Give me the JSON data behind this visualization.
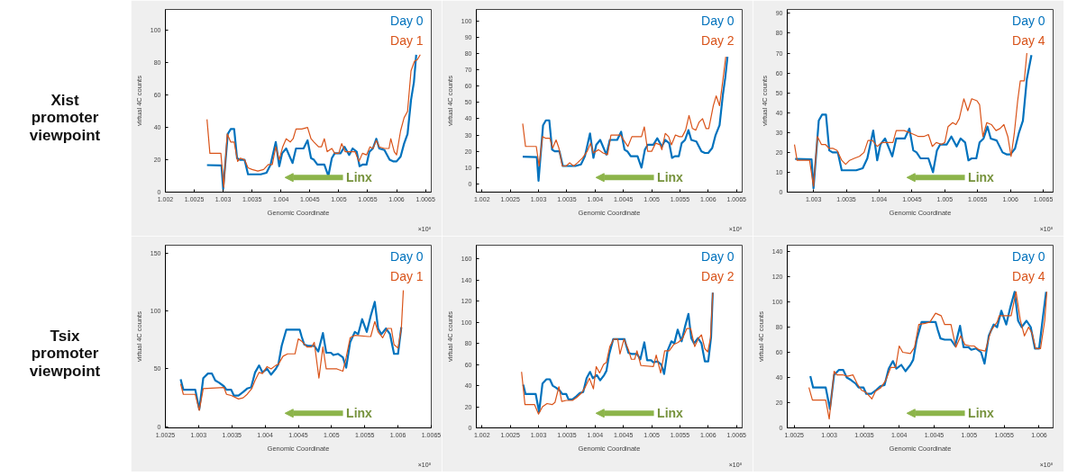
{
  "chart_data": [
    {
      "type": "other",
      "title": "Xist promoter viewpoint"
    },
    {
      "type": "line",
      "xlabel": "Genomic Coordinate",
      "ylabel": "virtual 4C counts",
      "xlim": [
        1.002,
        1.0066
      ],
      "ylim": [
        0,
        113
      ],
      "xticks": [
        1.002,
        1.0025,
        1.003,
        1.0035,
        1.004,
        1.0045,
        1.005,
        1.0055,
        1.006,
        1.0065
      ],
      "yticks": [
        0,
        20,
        40,
        60,
        80,
        100
      ],
      "legend": "top right",
      "annotations": [
        "Linx",
        "×10⁸"
      ],
      "series": [
        {
          "name": "Day 0",
          "color": "#0072bd",
          "x": [
            1.00272,
            1.00297,
            1.003,
            1.00308,
            1.00313,
            1.00319,
            1.00324,
            1.00329,
            1.00337,
            1.00343,
            1.00365,
            1.00375,
            1.00382,
            1.00391,
            1.00397,
            1.00402,
            1.00409,
            1.0042,
            1.00426,
            1.00439,
            1.00446,
            1.00452,
            1.00457,
            1.00463,
            1.00475,
            1.00482,
            1.00488,
            1.00493,
            1.00503,
            1.0051,
            1.00518,
            1.00524,
            1.00531,
            1.00536,
            1.00541,
            1.00548,
            1.00553,
            1.00559,
            1.00565,
            1.0057,
            1.00579,
            1.00588,
            1.00594,
            1.006,
            1.00607,
            1.00613,
            1.00619,
            1.00625,
            1.0063,
            1.00634
          ],
          "values": [
            16.7,
            16.5,
            2,
            36,
            39,
            39,
            21,
            20,
            20,
            11,
            11,
            12,
            17,
            31,
            16,
            24,
            27,
            18,
            27,
            27,
            32,
            21,
            20,
            17,
            17,
            10,
            21,
            24,
            24,
            28,
            23,
            27,
            25,
            16,
            17,
            17,
            25,
            27,
            33,
            27,
            26,
            20,
            19,
            19,
            22,
            30,
            36,
            57,
            68,
            85
          ]
        },
        {
          "name": "Day 1",
          "color": "#d95319",
          "x": [
            1.00272,
            1.00277,
            1.00296,
            1.00301,
            1.00307,
            1.00313,
            1.00319,
            1.00325,
            1.0033,
            1.00337,
            1.00343,
            1.0035,
            1.0036,
            1.0037,
            1.00378,
            1.00385,
            1.00391,
            1.00397,
            1.00403,
            1.00409,
            1.00416,
            1.00421,
            1.00426,
            1.00436,
            1.00446,
            1.00452,
            1.00457,
            1.00465,
            1.0047,
            1.00475,
            1.0048,
            1.00488,
            1.00493,
            1.005,
            1.00505,
            1.00511,
            1.00518,
            1.00528,
            1.00535,
            1.00541,
            1.00548,
            1.00554,
            1.00559,
            1.00565,
            1.0057,
            1.00579,
            1.00587,
            1.0059,
            1.00596,
            1.006,
            1.00607,
            1.00613,
            1.00619,
            1.00625,
            1.00631,
            1.00636,
            1.00641
          ],
          "values": [
            45,
            24,
            24,
            3,
            36,
            31,
            31,
            19,
            21,
            20,
            15,
            14,
            13,
            14,
            17,
            17,
            28,
            20,
            28,
            33,
            31,
            33,
            39,
            39,
            40,
            33,
            31,
            28,
            28,
            33,
            25,
            27,
            24,
            24,
            30,
            25,
            25,
            25,
            19,
            24,
            23,
            28,
            27,
            32,
            28,
            27,
            27,
            33,
            25,
            23,
            38,
            46,
            50,
            75,
            81,
            82,
            85
          ]
        }
      ]
    },
    {
      "type": "line",
      "xlabel": "Genomic Coordinate",
      "ylabel": "virtual 4C counts",
      "xlim": [
        1.0019,
        1.0066
      ],
      "ylim": [
        -5,
        107
      ],
      "xticks": [
        1.002,
        1.0025,
        1.003,
        1.0035,
        1.004,
        1.0045,
        1.005,
        1.0055,
        1.006,
        1.0065
      ],
      "yticks": [
        0,
        10,
        20,
        30,
        40,
        50,
        60,
        70,
        80,
        90,
        100
      ],
      "legend": "top right",
      "annotations": [
        "Linx",
        "×10⁸"
      ],
      "series": [
        {
          "name": "Day 0",
          "color": "#0072bd",
          "x": [
            1.00272,
            1.00297,
            1.003,
            1.00308,
            1.00313,
            1.00319,
            1.00324,
            1.00329,
            1.00337,
            1.00343,
            1.00365,
            1.00375,
            1.00382,
            1.00391,
            1.00397,
            1.00402,
            1.00409,
            1.0042,
            1.00426,
            1.00439,
            1.00446,
            1.00452,
            1.00457,
            1.00463,
            1.00475,
            1.00482,
            1.00488,
            1.00493,
            1.00503,
            1.0051,
            1.00518,
            1.00524,
            1.00531,
            1.00536,
            1.00541,
            1.00548,
            1.00553,
            1.00559,
            1.00565,
            1.0057,
            1.00579,
            1.00588,
            1.00594,
            1.006,
            1.00607,
            1.00613,
            1.0062,
            1.00626,
            1.0063,
            1.00634
          ],
          "values": [
            16.7,
            16.5,
            2,
            36,
            39,
            39,
            21,
            20,
            20,
            11,
            11,
            12,
            17,
            31,
            16,
            24,
            27,
            18,
            27,
            27,
            32,
            21,
            20,
            17,
            17,
            10,
            21,
            24,
            24,
            28,
            23,
            27,
            25,
            16,
            17,
            17,
            25,
            27,
            33,
            27,
            26,
            20,
            19,
            19,
            22,
            30,
            36,
            55,
            65,
            78
          ]
        },
        {
          "name": "Day 2",
          "color": "#d95319",
          "x": [
            1.00272,
            1.00277,
            1.00296,
            1.00301,
            1.00307,
            1.00313,
            1.0032,
            1.00325,
            1.00331,
            1.00336,
            1.00342,
            1.00349,
            1.00355,
            1.00362,
            1.00369,
            1.00378,
            1.00386,
            1.00392,
            1.00397,
            1.00406,
            1.00414,
            1.00422,
            1.00428,
            1.00437,
            1.00445,
            1.00454,
            1.00458,
            1.00465,
            1.00476,
            1.00482,
            1.00487,
            1.00493,
            1.005,
            1.00507,
            1.00515,
            1.00518,
            1.00524,
            1.0053,
            1.00535,
            1.00542,
            1.00549,
            1.00554,
            1.0056,
            1.00566,
            1.00572,
            1.00578,
            1.00584,
            1.0059,
            1.00596,
            1.00601,
            1.00609,
            1.00614,
            1.0062,
            1.00626,
            1.00631
          ],
          "values": [
            37,
            23,
            23,
            11,
            29,
            28,
            28,
            22,
            27,
            22,
            11,
            11,
            13,
            11,
            13,
            16,
            20,
            25,
            19,
            21,
            19,
            18,
            30,
            30,
            30,
            25,
            23,
            29,
            29,
            29,
            35,
            20,
            20,
            25,
            24,
            21,
            31,
            29,
            24,
            30,
            29,
            29,
            33,
            42,
            34,
            33,
            38,
            40,
            34,
            34,
            48,
            54,
            48,
            64,
            78
          ]
        }
      ]
    },
    {
      "type": "line",
      "xlabel": "Genomic Coordinate",
      "ylabel": "virtual 4C counts",
      "xlim": [
        1.0026,
        1.00665
      ],
      "ylim": [
        0,
        92
      ],
      "xticks": [
        1.003,
        1.0035,
        1.004,
        1.0045,
        1.005,
        1.0055,
        1.006,
        1.0065
      ],
      "yticks": [
        0,
        10,
        20,
        30,
        40,
        50,
        60,
        70,
        80,
        90
      ],
      "legend": "top right",
      "annotations": [
        "Linx",
        "×10⁸"
      ],
      "series": [
        {
          "name": "Day 0",
          "color": "#0072bd",
          "x": [
            1.00272,
            1.00297,
            1.003,
            1.00308,
            1.00313,
            1.00319,
            1.00324,
            1.00329,
            1.00337,
            1.00343,
            1.00365,
            1.00375,
            1.00382,
            1.00391,
            1.00397,
            1.00402,
            1.00409,
            1.0042,
            1.00426,
            1.00439,
            1.00446,
            1.00452,
            1.00457,
            1.00463,
            1.00475,
            1.00482,
            1.00488,
            1.00493,
            1.00503,
            1.0051,
            1.00518,
            1.00524,
            1.00531,
            1.00536,
            1.00541,
            1.00548,
            1.00553,
            1.00559,
            1.00565,
            1.0057,
            1.00579,
            1.00588,
            1.00594,
            1.006,
            1.00607,
            1.00613,
            1.00619,
            1.00625,
            1.00632
          ],
          "values": [
            16.7,
            16.5,
            2,
            36,
            39,
            39,
            21,
            20,
            20,
            11,
            11,
            12,
            17,
            31,
            16,
            24,
            27,
            18,
            27,
            27,
            32,
            21,
            20,
            17,
            17,
            10,
            21,
            24,
            24,
            28,
            23,
            27,
            25,
            16,
            17,
            17,
            25,
            27,
            33,
            27,
            26,
            20,
            19,
            19,
            22,
            30,
            36,
            57,
            69
          ]
        },
        {
          "name": "Day 4",
          "color": "#d95319",
          "x": [
            1.00271,
            1.00275,
            1.00294,
            1.003,
            1.00306,
            1.00312,
            1.00318,
            1.00324,
            1.0033,
            1.00336,
            1.00343,
            1.00349,
            1.00355,
            1.00362,
            1.0037,
            1.00377,
            1.00383,
            1.0039,
            1.00397,
            1.00404,
            1.00416,
            1.00421,
            1.00426,
            1.00438,
            1.00446,
            1.00453,
            1.0046,
            1.00468,
            1.00475,
            1.00481,
            1.00487,
            1.00495,
            1.005,
            1.00505,
            1.00512,
            1.00517,
            1.00522,
            1.00529,
            1.00535,
            1.00541,
            1.00549,
            1.00553,
            1.00558,
            1.00564,
            1.00571,
            1.00578,
            1.00584,
            1.0059,
            1.00596,
            1.00601,
            1.00606,
            1.00611,
            1.00615,
            1.00621,
            1.00625
          ],
          "values": [
            24,
            16,
            16,
            3,
            28,
            24,
            24,
            22,
            22,
            21,
            16,
            14,
            16,
            17,
            18,
            20,
            26,
            26,
            23,
            25,
            25,
            25,
            31,
            31,
            30,
            29,
            28,
            28,
            29,
            23,
            25,
            24,
            25,
            33,
            35,
            34,
            37,
            47,
            41,
            47,
            46,
            44,
            28,
            35,
            34,
            31,
            32,
            34,
            28,
            18,
            30,
            46,
            56,
            56,
            70
          ]
        }
      ]
    },
    {
      "type": "other",
      "title": "Tsix promoter viewpoint"
    },
    {
      "type": "line",
      "xlabel": "Genomic Coordinate",
      "ylabel": "virtual 4C counts",
      "xlim": [
        1.0025,
        1.0065
      ],
      "ylim": [
        -1,
        157
      ],
      "xticks": [
        1.0025,
        1.003,
        1.0035,
        1.004,
        1.0045,
        1.005,
        1.0055,
        1.006,
        1.0065
      ],
      "yticks": [
        0,
        50,
        100,
        150
      ],
      "legend": "top right",
      "annotations": [
        "Linx",
        "×10⁸"
      ],
      "series": [
        {
          "name": "Day 0",
          "color": "#0072bd",
          "x": [
            1.00273,
            1.00277,
            1.00295,
            1.00301,
            1.00307,
            1.00314,
            1.0032,
            1.00325,
            1.00331,
            1.00338,
            1.00342,
            1.00349,
            1.00353,
            1.0036,
            1.00367,
            1.00373,
            1.00379,
            1.00385,
            1.00391,
            1.00396,
            1.00403,
            1.00409,
            1.00416,
            1.0042,
            1.00425,
            1.00432,
            1.00443,
            1.00452,
            1.00455,
            1.00459,
            1.00465,
            1.00474,
            1.0048,
            1.00487,
            1.00492,
            1.00499,
            1.00503,
            1.0051,
            1.00517,
            1.00522,
            1.00528,
            1.00535,
            1.0054,
            1.00546,
            1.00553,
            1.00559,
            1.00565,
            1.0057,
            1.00575,
            1.00582,
            1.00588,
            1.00594,
            1.006,
            1.00605
          ],
          "values": [
            41,
            32,
            32,
            15,
            42,
            46,
            46,
            40,
            38,
            35,
            32,
            32,
            27,
            27,
            30,
            33,
            34,
            47,
            53,
            47,
            50,
            45,
            50,
            54,
            70,
            84,
            84,
            84,
            78,
            71,
            70,
            70,
            65,
            81,
            64,
            64,
            62,
            63,
            60,
            51,
            73,
            82,
            80,
            93,
            82,
            96,
            108,
            85,
            80,
            85,
            80,
            63,
            63,
            86
          ]
        },
        {
          "name": "Day 1",
          "color": "#d95319",
          "x": [
            1.00273,
            1.00277,
            1.00295,
            1.00301,
            1.00307,
            1.00338,
            1.00342,
            1.00349,
            1.0036,
            1.00367,
            1.00373,
            1.0038,
            1.00385,
            1.00391,
            1.00396,
            1.00403,
            1.00409,
            1.00416,
            1.0042,
            1.00427,
            1.00434,
            1.00445,
            1.0045,
            1.00455,
            1.00463,
            1.0047,
            1.00474,
            1.00481,
            1.00487,
            1.00492,
            1.00508,
            1.00517,
            1.00522,
            1.00528,
            1.00535,
            1.00555,
            1.00559,
            1.00565,
            1.0057,
            1.00577,
            1.00584,
            1.0059,
            1.00594,
            1.006,
            1.00605,
            1.00608
          ],
          "values": [
            37,
            28,
            28,
            14,
            33,
            34,
            28,
            27,
            24,
            25,
            28,
            33,
            40,
            47,
            46,
            52,
            50,
            53,
            54,
            61,
            63,
            63,
            76,
            74,
            69,
            69,
            73,
            42,
            69,
            50,
            50,
            48,
            60,
            77,
            79,
            78,
            78,
            91,
            82,
            77,
            85,
            85,
            71,
            68,
            85,
            118
          ]
        }
      ]
    },
    {
      "type": "line",
      "xlabel": "Genomic Coordinate",
      "ylabel": "virtual 4C counts",
      "xlim": [
        1.0019,
        1.0066
      ],
      "ylim": [
        0,
        173
      ],
      "xticks": [
        1.002,
        1.0025,
        1.003,
        1.0035,
        1.004,
        1.0045,
        1.005,
        1.0055,
        1.006,
        1.0065
      ],
      "yticks": [
        0,
        20,
        40,
        60,
        80,
        100,
        120,
        140,
        160
      ],
      "legend": "top right",
      "annotations": [
        "Linx",
        "×10⁸"
      ],
      "series": [
        {
          "name": "Day 0",
          "color": "#0072bd",
          "x": [
            1.00273,
            1.00277,
            1.00295,
            1.00301,
            1.00307,
            1.00314,
            1.0032,
            1.00325,
            1.00331,
            1.00338,
            1.00342,
            1.00349,
            1.00353,
            1.0036,
            1.00367,
            1.00373,
            1.00379,
            1.00385,
            1.00391,
            1.00396,
            1.00403,
            1.00409,
            1.00416,
            1.0042,
            1.00425,
            1.00432,
            1.00443,
            1.00452,
            1.00455,
            1.00459,
            1.00465,
            1.00474,
            1.0048,
            1.00487,
            1.00492,
            1.00499,
            1.00503,
            1.0051,
            1.00517,
            1.00522,
            1.00528,
            1.00535,
            1.0054,
            1.00546,
            1.00553,
            1.00559,
            1.00565,
            1.0057,
            1.00575,
            1.00582,
            1.00588,
            1.00594,
            1.006,
            1.00605,
            1.00608
          ],
          "values": [
            41,
            32,
            32,
            15,
            42,
            46,
            46,
            40,
            38,
            35,
            32,
            32,
            27,
            27,
            30,
            33,
            34,
            47,
            53,
            47,
            50,
            45,
            50,
            54,
            70,
            84,
            84,
            84,
            78,
            71,
            70,
            70,
            65,
            81,
            64,
            64,
            62,
            63,
            60,
            51,
            73,
            82,
            80,
            93,
            82,
            96,
            108,
            85,
            80,
            85,
            80,
            63,
            63,
            86,
            128
          ]
        },
        {
          "name": "Day 2",
          "color": "#d95319",
          "x": [
            1.0027,
            1.00276,
            1.00293,
            1.003,
            1.00307,
            1.00315,
            1.00324,
            1.00329,
            1.00336,
            1.00341,
            1.00349,
            1.0036,
            1.00368,
            1.00376,
            1.00382,
            1.0039,
            1.00397,
            1.00402,
            1.00408,
            1.00415,
            1.0042,
            1.00426,
            1.00433,
            1.0044,
            1.00444,
            1.00451,
            1.00459,
            1.00464,
            1.0047,
            1.00474,
            1.00481,
            1.00503,
            1.00508,
            1.00516,
            1.00523,
            1.00531,
            1.00539,
            1.00547,
            1.00555,
            1.00562,
            1.00569,
            1.00576,
            1.00583,
            1.00588,
            1.00594,
            1.00599,
            1.00604,
            1.00608
          ],
          "values": [
            53,
            22,
            22,
            13,
            20,
            23,
            22,
            24,
            39,
            25,
            26,
            26,
            29,
            33,
            38,
            47,
            37,
            58,
            52,
            60,
            62,
            77,
            84,
            84,
            70,
            84,
            74,
            65,
            65,
            73,
            59,
            58,
            69,
            52,
            73,
            73,
            79,
            81,
            85,
            94,
            94,
            77,
            85,
            88,
            75,
            72,
            85,
            128
          ]
        }
      ]
    },
    {
      "type": "line",
      "xlabel": "Genomic Coordinate",
      "ylabel": "virtual 4C counts",
      "xlim": [
        1.0024,
        1.0062
      ],
      "ylim": [
        0,
        145
      ],
      "xticks": [
        1.0025,
        1.003,
        1.0035,
        1.004,
        1.0045,
        1.005,
        1.0055,
        1.006
      ],
      "yticks": [
        0,
        20,
        40,
        60,
        80,
        100,
        120,
        140
      ],
      "legend": "top right",
      "annotations": [
        "Linx",
        "×10⁸"
      ],
      "series": [
        {
          "name": "Day 0",
          "color": "#0072bd",
          "x": [
            1.00273,
            1.00277,
            1.00295,
            1.00301,
            1.00307,
            1.00314,
            1.0032,
            1.00325,
            1.00331,
            1.00338,
            1.00342,
            1.00349,
            1.00353,
            1.0036,
            1.00367,
            1.00373,
            1.00379,
            1.00385,
            1.00391,
            1.00396,
            1.00403,
            1.00409,
            1.00416,
            1.0042,
            1.00425,
            1.00432,
            1.00443,
            1.00452,
            1.00455,
            1.00459,
            1.00465,
            1.00474,
            1.0048,
            1.00487,
            1.00492,
            1.00499,
            1.00503,
            1.0051,
            1.00517,
            1.00522,
            1.00528,
            1.00535,
            1.0054,
            1.00546,
            1.00553,
            1.00559,
            1.00565,
            1.0057,
            1.00575,
            1.00582,
            1.00588,
            1.00594,
            1.006,
            1.00605,
            1.0061
          ],
          "values": [
            41,
            32,
            32,
            15,
            42,
            46,
            46,
            40,
            38,
            35,
            32,
            32,
            27,
            27,
            30,
            33,
            34,
            47,
            53,
            47,
            50,
            45,
            50,
            54,
            70,
            84,
            84,
            84,
            78,
            71,
            70,
            70,
            65,
            81,
            64,
            64,
            62,
            63,
            60,
            51,
            73,
            82,
            80,
            93,
            82,
            96,
            108,
            85,
            80,
            85,
            80,
            63,
            63,
            86,
            108
          ]
        },
        {
          "name": "Day 4",
          "color": "#d95319",
          "x": [
            1.00271,
            1.00276,
            1.00295,
            1.003,
            1.00307,
            1.00311,
            1.0032,
            1.00326,
            1.00334,
            1.0034,
            1.00346,
            1.00353,
            1.00361,
            1.00366,
            1.00374,
            1.00381,
            1.00388,
            1.00395,
            1.004,
            1.00405,
            1.00416,
            1.00422,
            1.00428,
            1.00437,
            1.00444,
            1.00452,
            1.0046,
            1.00465,
            1.00474,
            1.00481,
            1.00488,
            1.00494,
            1.00502,
            1.00507,
            1.00514,
            1.00523,
            1.00531,
            1.0054,
            1.00543,
            1.00554,
            1.0056,
            1.00567,
            1.00573,
            1.00579,
            1.00585,
            1.0059,
            1.00595,
            1.00602,
            1.00608,
            1.00611
          ],
          "values": [
            32,
            22,
            22,
            7,
            45,
            42,
            42,
            41,
            42,
            35,
            30,
            28,
            23,
            29,
            32,
            38,
            48,
            48,
            65,
            60,
            59,
            64,
            82,
            83,
            84,
            91,
            89,
            82,
            82,
            64,
            73,
            66,
            65,
            65,
            62,
            61,
            77,
            84,
            89,
            89,
            89,
            108,
            86,
            73,
            80,
            75,
            63,
            63,
            85,
            108
          ]
        }
      ]
    }
  ]
}
